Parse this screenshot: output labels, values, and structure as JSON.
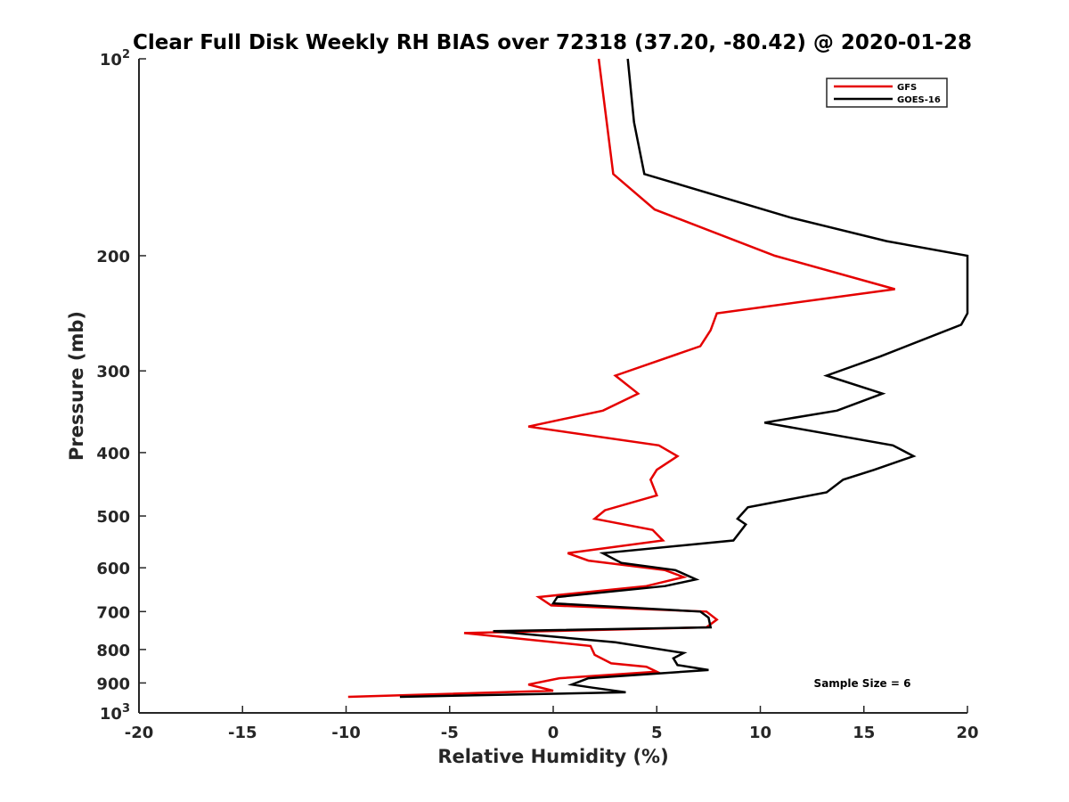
{
  "chart_data": {
    "type": "line",
    "title": "Clear Full Disk Weekly RH BIAS over 72318 (37.20, -80.42) @ 2020-01-28",
    "xlabel": "Relative Humidity (%)",
    "ylabel": "Pressure (mb)",
    "xlim": [
      -20,
      20
    ],
    "ylim": [
      100,
      1000
    ],
    "y_scale": "log",
    "y_reversed": true,
    "grid": false,
    "x_ticks": [
      "-20",
      "-15",
      "-10",
      "-5",
      "0",
      "5",
      "10",
      "15",
      "20"
    ],
    "y_ticks": [
      {
        "value": 100,
        "base": "10",
        "exp": "2"
      },
      {
        "value": 200,
        "label": "200"
      },
      {
        "value": 300,
        "label": "300"
      },
      {
        "value": 400,
        "label": "400"
      },
      {
        "value": 500,
        "label": "500"
      },
      {
        "value": 600,
        "label": "600"
      },
      {
        "value": 700,
        "label": "700"
      },
      {
        "value": 800,
        "label": "800"
      },
      {
        "value": 900,
        "label": "900"
      },
      {
        "value": 1000,
        "base": "10",
        "exp": "3"
      }
    ],
    "legend_position": "top-right",
    "annotation": "Sample Size = 6",
    "series": [
      {
        "name": "GFS",
        "color": "#e50000",
        "points": [
          [
            2.2,
            100
          ],
          [
            2.9,
            150
          ],
          [
            4.9,
            170
          ],
          [
            10.7,
            200
          ],
          [
            16.5,
            225
          ],
          [
            7.9,
            245
          ],
          [
            7.6,
            260
          ],
          [
            7.1,
            275
          ],
          [
            3.0,
            305
          ],
          [
            4.1,
            325
          ],
          [
            2.4,
            345
          ],
          [
            -1.2,
            365
          ],
          [
            5.1,
            390
          ],
          [
            6.0,
            405
          ],
          [
            5.0,
            425
          ],
          [
            4.7,
            440
          ],
          [
            5.0,
            465
          ],
          [
            2.5,
            490
          ],
          [
            2.0,
            505
          ],
          [
            4.8,
            525
          ],
          [
            5.3,
            545
          ],
          [
            0.7,
            570
          ],
          [
            1.7,
            585
          ],
          [
            5.4,
            605
          ],
          [
            6.3,
            620
          ],
          [
            4.5,
            640
          ],
          [
            -0.7,
            665
          ],
          [
            -0.1,
            685
          ],
          [
            7.4,
            700
          ],
          [
            7.9,
            720
          ],
          [
            7.4,
            740
          ],
          [
            -4.3,
            755
          ],
          [
            1.8,
            790
          ],
          [
            2.0,
            815
          ],
          [
            2.8,
            840
          ],
          [
            4.5,
            850
          ],
          [
            5.0,
            865
          ],
          [
            0.3,
            885
          ],
          [
            -1.2,
            905
          ],
          [
            0.0,
            925
          ],
          [
            -9.9,
            945
          ]
        ]
      },
      {
        "name": "GOES-16",
        "color": "#000000",
        "points": [
          [
            3.6,
            100
          ],
          [
            3.9,
            125
          ],
          [
            4.4,
            150
          ],
          [
            11.5,
            175
          ],
          [
            16.1,
            190
          ],
          [
            20.0,
            200
          ],
          [
            20.0,
            245
          ],
          [
            19.7,
            255
          ],
          [
            15.8,
            285
          ],
          [
            13.2,
            305
          ],
          [
            15.9,
            325
          ],
          [
            13.7,
            345
          ],
          [
            10.2,
            360
          ],
          [
            16.4,
            390
          ],
          [
            17.4,
            405
          ],
          [
            15.5,
            425
          ],
          [
            14.0,
            440
          ],
          [
            13.2,
            460
          ],
          [
            9.4,
            485
          ],
          [
            8.9,
            505
          ],
          [
            9.3,
            515
          ],
          [
            8.7,
            545
          ],
          [
            2.4,
            570
          ],
          [
            3.3,
            590
          ],
          [
            5.9,
            605
          ],
          [
            6.9,
            625
          ],
          [
            5.4,
            640
          ],
          [
            0.2,
            665
          ],
          [
            0.0,
            680
          ],
          [
            7.1,
            700
          ],
          [
            7.5,
            715
          ],
          [
            7.6,
            740
          ],
          [
            -2.9,
            750
          ],
          [
            3.0,
            780
          ],
          [
            6.3,
            810
          ],
          [
            5.8,
            825
          ],
          [
            6.0,
            845
          ],
          [
            7.5,
            860
          ],
          [
            1.7,
            885
          ],
          [
            0.9,
            905
          ],
          [
            1.9,
            915
          ],
          [
            3.5,
            930
          ],
          [
            -7.4,
            945
          ]
        ]
      }
    ]
  }
}
